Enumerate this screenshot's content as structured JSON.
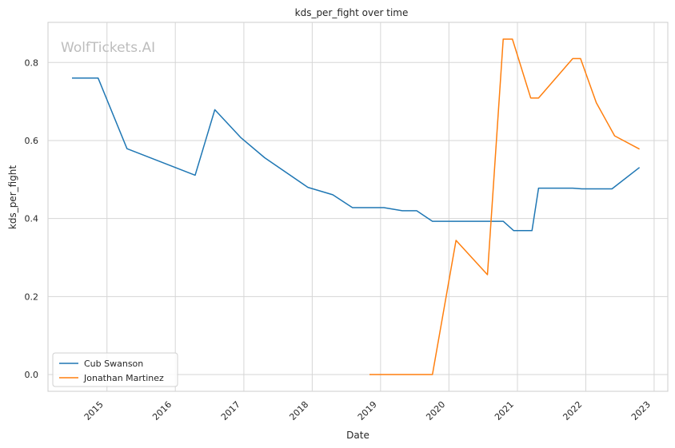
{
  "chart_data": {
    "type": "line",
    "title": "kds_per_fight over time",
    "xlabel": "Date",
    "ylabel": "kds_per_fight",
    "watermark": "WolfTickets.AI",
    "x_ticks": [
      "2015",
      "2016",
      "2017",
      "2018",
      "2019",
      "2020",
      "2021",
      "2022",
      "2023"
    ],
    "y_ticks": [
      "0.0",
      "0.2",
      "0.4",
      "0.6",
      "0.8"
    ],
    "xlim": [
      "2014-02-20",
      "2023-03-15"
    ],
    "ylim": [
      -0.043,
      0.903
    ],
    "grid": true,
    "legend_position": "lower-left",
    "series": [
      {
        "name": "Cub Swanson",
        "color": "#1f77b4",
        "x": [
          "2014-06-28",
          "2014-11-15",
          "2015-04-18",
          "2016-04-16",
          "2016-07-30",
          "2016-12-17",
          "2017-04-22",
          "2017-12-09",
          "2018-04-21",
          "2018-08-04",
          "2019-01-19",
          "2019-04-27",
          "2019-07-13",
          "2019-10-05",
          "2020-10-17",
          "2020-12-12",
          "2021-03-20",
          "2021-04-24",
          "2021-10-23",
          "2021-12-11",
          "2022-05-21",
          "2022-10-15"
        ],
        "y": [
          0.76,
          0.76,
          0.579,
          0.511,
          0.679,
          0.607,
          0.556,
          0.48,
          0.461,
          0.428,
          0.428,
          0.42,
          0.42,
          0.393,
          0.393,
          0.369,
          0.369,
          0.478,
          0.478,
          0.476,
          0.476,
          0.531
        ]
      },
      {
        "name": "Jonathan Martinez",
        "color": "#ff7f0e",
        "x": [
          "2018-11-03",
          "2019-09-14",
          "2019-10-05",
          "2020-02-08",
          "2020-07-25",
          "2020-10-17",
          "2020-12-05",
          "2021-03-13",
          "2021-04-24",
          "2021-10-23",
          "2021-12-04",
          "2022-02-26",
          "2022-06-04",
          "2022-10-15"
        ],
        "y": [
          0.0,
          0.0,
          0.0,
          0.344,
          0.256,
          0.86,
          0.86,
          0.709,
          0.709,
          0.81,
          0.81,
          0.697,
          0.612,
          0.578
        ]
      }
    ]
  }
}
